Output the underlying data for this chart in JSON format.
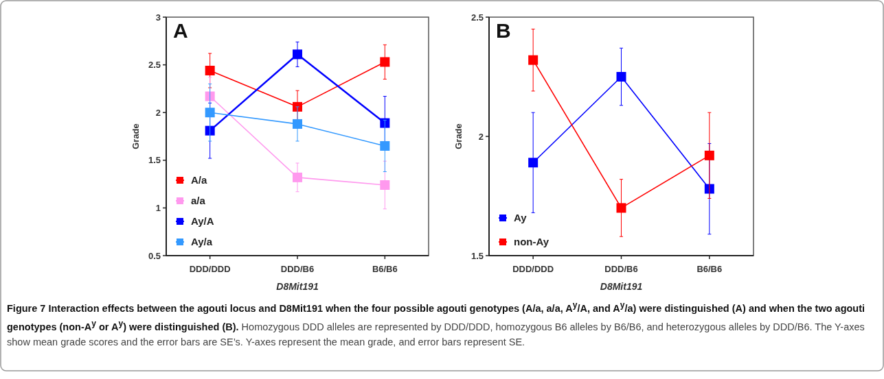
{
  "chart_data": [
    {
      "type": "line",
      "title": "A",
      "xlabel": "D8Mit191",
      "ylabel": "Grade",
      "categories": [
        "DDD/DDD",
        "DDD/B6",
        "B6/B6"
      ],
      "ylim": [
        0.5,
        3
      ],
      "yticks": [
        0.5,
        1,
        1.5,
        2,
        2.5,
        3
      ],
      "grid": false,
      "legend": "bottom left",
      "marker": "square",
      "line_style": "solid",
      "series": [
        {
          "name": "A/a",
          "color": "#ff0000",
          "values": [
            2.44,
            2.06,
            2.53
          ],
          "errors": [
            0.18,
            0.17,
            0.18
          ]
        },
        {
          "name": "a/a",
          "color": "#ff99ee",
          "values": [
            2.17,
            1.32,
            1.24
          ],
          "errors": [
            0.2,
            0.15,
            0.25
          ]
        },
        {
          "name": "Ay/A",
          "color": "#0000ff",
          "values": [
            1.81,
            2.61,
            1.89
          ],
          "errors": [
            0.29,
            0.13,
            0.28
          ]
        },
        {
          "name": "Ay/a",
          "color": "#3399ff",
          "values": [
            2.0,
            1.88,
            1.65
          ],
          "errors": [
            0.3,
            0.18,
            0.27
          ]
        }
      ],
      "annotations": [
        "Figure 7 Interaction effects between the agouti locus and D8Mit191 when the four possible agouti genotypes (A/a, a/a, A$^{y}$/A, and A$^{y}$/a) were distinguished (A) and when the two agouti genotypes (non-A$^{y}$ or A$^{y}$) were distinguished (B).",
        "Homozygous DDD alleles are represented by DDD/DDD, homozygous B6 alleles by B6/B6, and heterozygous alleles by DDD/B6. The Y-axes show mean grade scores and the error bars are SE’s. Y-axes represent the mean grade, and error bars represent SE."
      ]
    },
    {
      "type": "line",
      "title": "B",
      "xlabel": "D8Mit191",
      "ylabel": "Grade",
      "categories": [
        "DDD/DDD",
        "DDD/B6",
        "B6/B6"
      ],
      "ylim": [
        1.5,
        2.5
      ],
      "yticks": [
        1.5,
        2,
        2.5
      ],
      "grid": false,
      "legend": "bottom left",
      "marker": "square",
      "line_style": "solid",
      "series": [
        {
          "name": "Ay",
          "color": "#0000ff",
          "values": [
            1.89,
            2.25,
            1.78
          ],
          "errors": [
            0.21,
            0.12,
            0.19
          ]
        },
        {
          "name": "non-Ay",
          "color": "#ff0000",
          "values": [
            2.32,
            1.7,
            1.92
          ],
          "errors": [
            0.13,
            0.12,
            0.18
          ]
        }
      ]
    }
  ]
}
